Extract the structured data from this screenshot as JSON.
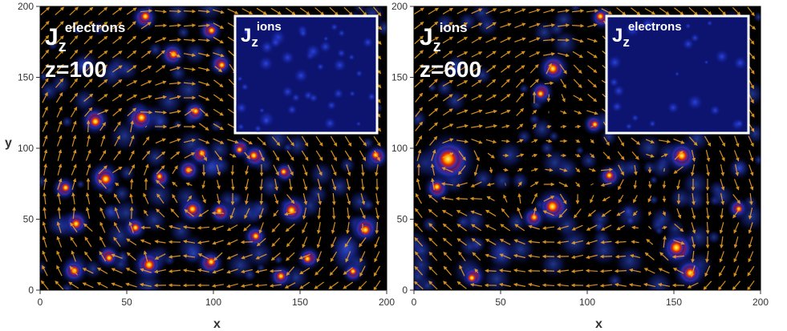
{
  "axis_labels": {
    "x": "x",
    "y": "y"
  },
  "panels": [
    {
      "id": "left",
      "main_label": {
        "base": "J",
        "sub": "z",
        "sup": "electrons"
      },
      "slice_label": "z=100",
      "inset_label": {
        "base": "J",
        "sub": "z",
        "sup": "ions"
      },
      "x_ticks": [
        "0",
        "50",
        "100",
        "150",
        "200"
      ],
      "y_ticks": [
        "0",
        "50",
        "100",
        "150",
        "200"
      ],
      "x_range": [
        0,
        200
      ],
      "y_range": [
        0,
        200
      ]
    },
    {
      "id": "right",
      "main_label": {
        "base": "J",
        "sub": "z",
        "sup": "ions"
      },
      "slice_label": "z=600",
      "inset_label": {
        "base": "J",
        "sub": "z",
        "sup": "electrons"
      },
      "x_ticks": [
        "0",
        "50",
        "100",
        "150",
        "200"
      ],
      "y_ticks": [
        "0",
        "50",
        "100",
        "150",
        "200"
      ],
      "x_range": [
        0,
        200
      ],
      "y_range": [
        0,
        200
      ]
    }
  ],
  "colors": {
    "background": "#000000",
    "deep_blue": "#0a0f4a",
    "blue": "#2040c0",
    "hot_red": "#ff3000",
    "hot_yellow": "#ffe060",
    "arrow": "#f0a020",
    "inset_border": "#ffffff"
  }
}
